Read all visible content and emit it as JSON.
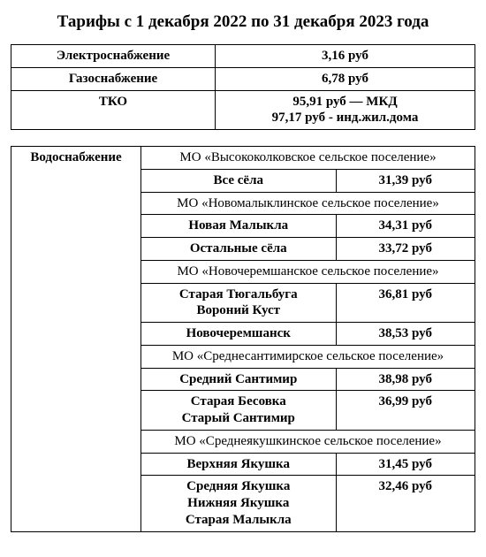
{
  "title": "Тарифы с 1 декабря 2022 по 31 декабря 2023 года",
  "top_table": {
    "rows": [
      {
        "label": "Электроснабжение",
        "value": "3,16 руб"
      },
      {
        "label": "Газоснабжение",
        "value": "6,78 руб"
      },
      {
        "label": "ТКО",
        "value": "95,91 руб — МКД\n97,17 руб - инд.жил.дома"
      }
    ]
  },
  "water": {
    "header": "Водоснабжение",
    "sections": [
      {
        "title": "МО «Высококолковское сельское поселение»",
        "rows": [
          {
            "place": "Все сёла",
            "price": "31,39 руб"
          }
        ]
      },
      {
        "title": "МО «Новомалыклинское сельское поселение»",
        "rows": [
          {
            "place": "Новая Малыкла",
            "price": "34,31 руб"
          },
          {
            "place": "Остальные сёла",
            "price": "33,72 руб"
          }
        ]
      },
      {
        "title": "МО «Новочеремшанское сельское поселение»",
        "rows": [
          {
            "place": "Старая Тюгальбуга\nВороний Куст",
            "price": "36,81 руб"
          },
          {
            "place": "Новочеремшанск",
            "price": "38,53 руб"
          }
        ]
      },
      {
        "title": "МО «Среднесантимирское сельское поселение»",
        "rows": [
          {
            "place": "Средний Сантимир",
            "price": "38,98 руб"
          },
          {
            "place": "Старая Бесовка\nСтарый Сантимир",
            "price": "36,99 руб"
          }
        ]
      },
      {
        "title": "МО «Среднеякушкинское сельское поселение»",
        "rows": [
          {
            "place": "Верхняя Якушка",
            "price": "31,45 руб"
          },
          {
            "place": "Средняя Якушка\nНижняя Якушка\nСтарая Малыкла",
            "price": "32,46 руб"
          }
        ]
      }
    ]
  }
}
